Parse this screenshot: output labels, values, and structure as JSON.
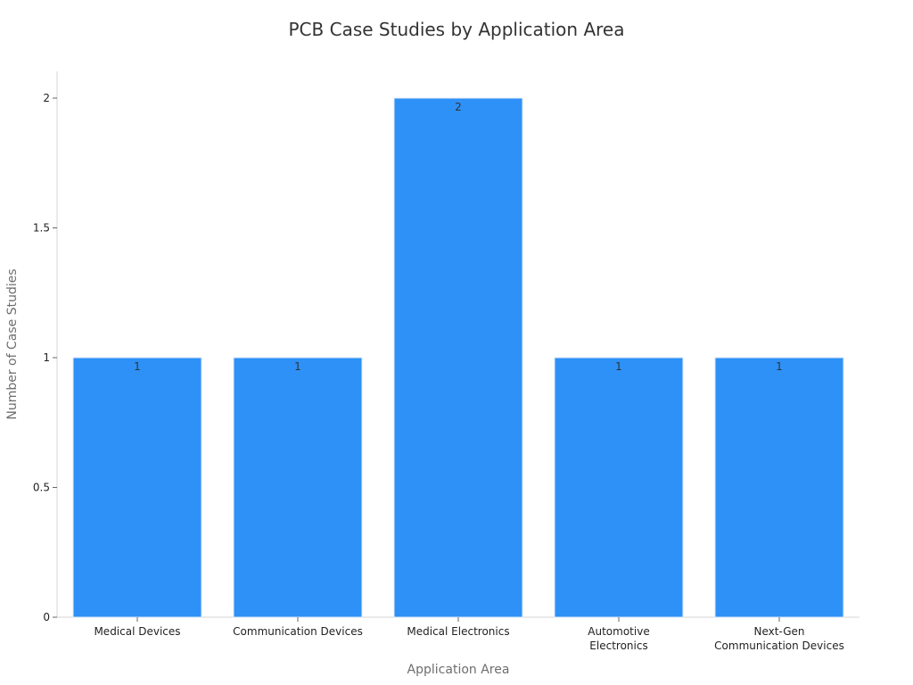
{
  "chart_data": {
    "type": "bar",
    "title": "PCB Case Studies by Application Area",
    "xlabel": "Application Area",
    "ylabel": "Number of Case Studies",
    "categories": [
      [
        "Medical Devices"
      ],
      [
        "Communication Devices"
      ],
      [
        "Medical Electronics"
      ],
      [
        "Automotive",
        "Electronics"
      ],
      [
        "Next-Gen",
        "Communication Devices"
      ]
    ],
    "values": [
      1,
      1,
      2,
      1,
      1
    ],
    "data_labels": [
      "1",
      "1",
      "2",
      "1",
      "1"
    ],
    "ylim": [
      0,
      2.1
    ],
    "yticks": [
      0,
      0.5,
      1,
      1.5,
      2
    ],
    "ytick_labels": [
      "0",
      "0.5",
      "1",
      "1.5",
      "2"
    ],
    "grid": false,
    "bar_color": "#2e91f7",
    "bar_edge_color": "#dce9f7"
  }
}
